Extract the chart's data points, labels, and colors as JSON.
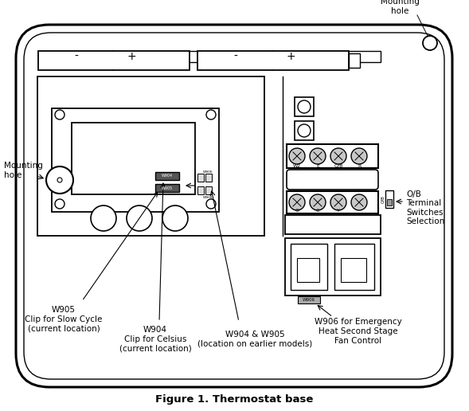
{
  "title": "Figure 1. Thermostat base",
  "bg_color": "#ffffff",
  "outline_color": "#000000",
  "fig_width": 5.89,
  "fig_height": 5.16,
  "labels": {
    "mounting_hole_top": "Mounting\nhole",
    "mounting_hole_left": "Mounting\nhole",
    "w905": "W905\nClip for Slow Cycle\n(current location)",
    "w904": "W904\nClip for Celsius\n(current location)",
    "w904_w905": "W904 & W905\n(location on earlier models)",
    "w906": "W906 for Emergency\nHeat Second Stage\nFan Control",
    "ob": "O/B\nTerminal\nSwitches\nSelection"
  }
}
